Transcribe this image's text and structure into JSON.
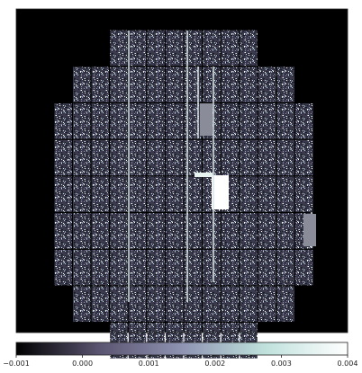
{
  "chart_data": {
    "type": "heatmap",
    "title": "",
    "xlabel": "",
    "ylabel": "",
    "description_of_marks": "focal-plane mosaic of CCD amplifier tiles arranged in a circular layout, each tile filled with noisy pixel values",
    "colorbar": {
      "orientation": "horizontal",
      "placement": "bottom",
      "range": [
        -0.001,
        0.004
      ],
      "colormap": "bone",
      "colors": [
        "#000000",
        "#5a5470",
        "#8e93b2",
        "#bfe1dc",
        "#ffffff"
      ],
      "tick_values": [
        -0.001,
        0.0,
        0.001,
        0.002,
        0.003,
        0.004
      ],
      "tick_labels": [
        "−0.001",
        "0.000",
        "0.001",
        "0.002",
        "0.003",
        "0.004"
      ]
    },
    "background_value": -0.001,
    "tile_rows": [
      {
        "row": 1,
        "tiles": 8
      },
      {
        "row": 2,
        "tiles": 12
      },
      {
        "row": 3,
        "tiles": 14
      },
      {
        "row": 4,
        "tiles": 14
      },
      {
        "row": 5,
        "tiles": 14
      },
      {
        "row": 6,
        "tiles": 14
      },
      {
        "row": 7,
        "tiles": 14
      },
      {
        "row": 8,
        "tiles": 12
      },
      {
        "row": 9,
        "tiles": 8
      }
    ],
    "features": [
      "bright saturated rectangle near image center-right",
      "bright vertical column streaks",
      "a few uniform grey (masked) tiles"
    ],
    "grid": false
  }
}
